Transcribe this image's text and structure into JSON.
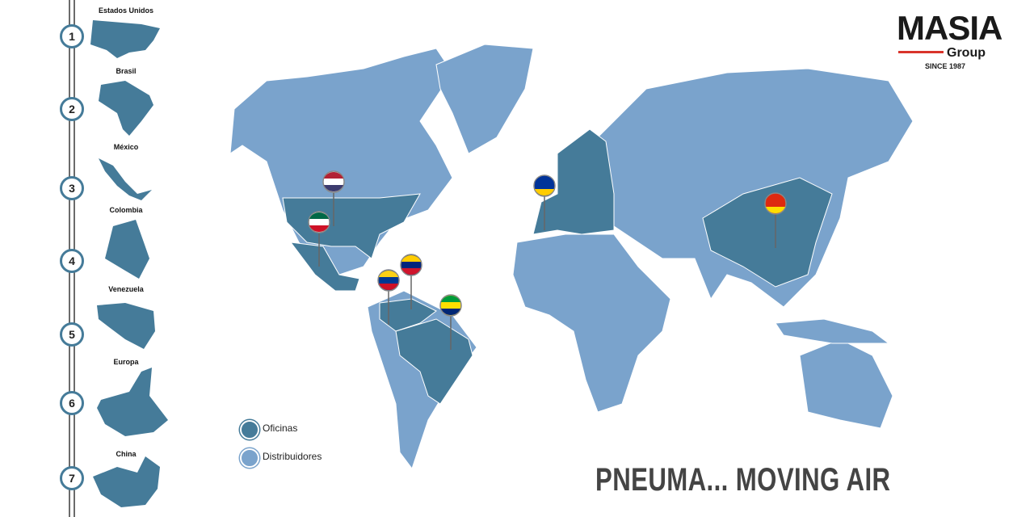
{
  "colors": {
    "offices": "#457b99",
    "distributors": "#7aa3cc",
    "rail": "#6b6b6b"
  },
  "sidebar": {
    "items": [
      {
        "number": "1",
        "label": "Estados Unidos"
      },
      {
        "number": "2",
        "label": "Brasil"
      },
      {
        "number": "3",
        "label": "México"
      },
      {
        "number": "4",
        "label": "Colombia"
      },
      {
        "number": "5",
        "label": "Venezuela"
      },
      {
        "number": "6",
        "label": "Europa"
      },
      {
        "number": "7",
        "label": "China"
      }
    ]
  },
  "logo": {
    "name": "MASIA",
    "sub": "Group",
    "since": "SINCE 1987"
  },
  "legend": [
    {
      "label": "Oficinas",
      "type": "offices"
    },
    {
      "label": "Distribuidores",
      "type": "distributors"
    }
  ],
  "pins": [
    "usa-flag",
    "mexico-flag",
    "colombia-flag",
    "venezuela-flag",
    "brazil-flag",
    "eu-flag",
    "china-flag"
  ],
  "slogan": "PNEUMA... MOVING AIR"
}
